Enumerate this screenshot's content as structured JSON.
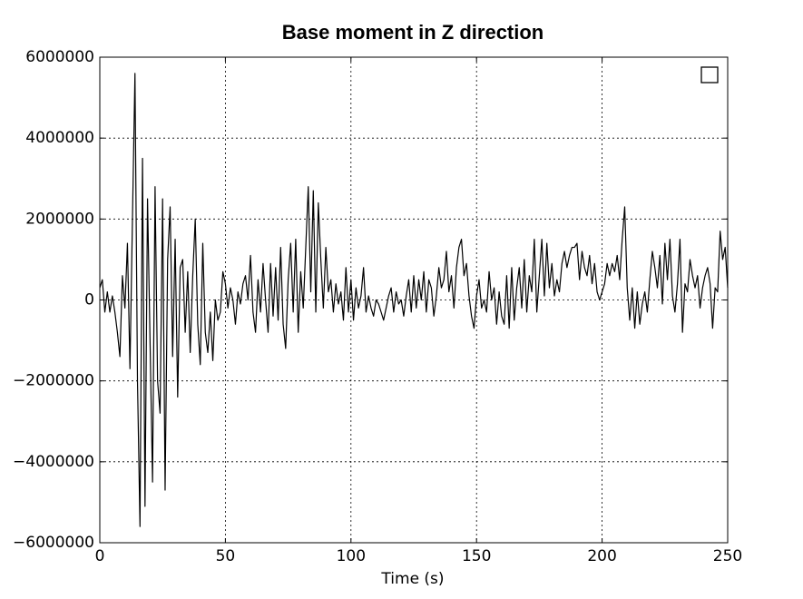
{
  "chart_data": {
    "type": "line",
    "title": "Base moment in Z direction",
    "x_label": "Time (s)",
    "x": [
      0,
      1,
      2,
      3,
      4,
      5,
      6,
      7,
      8,
      9,
      10,
      11,
      12,
      13,
      14,
      15,
      16,
      17,
      18,
      19,
      20,
      21,
      22,
      23,
      24,
      25,
      26,
      27,
      28,
      29,
      30,
      31,
      32,
      33,
      34,
      35,
      36,
      37,
      38,
      39,
      40,
      41,
      42,
      43,
      44,
      45,
      46,
      47,
      48,
      49,
      50,
      51,
      52,
      53,
      54,
      55,
      56,
      57,
      58,
      59,
      60,
      61,
      62,
      63,
      64,
      65,
      66,
      67,
      68,
      69,
      70,
      71,
      72,
      73,
      74,
      75,
      76,
      77,
      78,
      79,
      80,
      81,
      82,
      83,
      84,
      85,
      86,
      87,
      88,
      89,
      90,
      91,
      92,
      93,
      94,
      95,
      96,
      97,
      98,
      99,
      100,
      101,
      102,
      103,
      104,
      105,
      106,
      107,
      108,
      109,
      110,
      111,
      112,
      113,
      114,
      115,
      116,
      117,
      118,
      119,
      120,
      121,
      122,
      123,
      124,
      125,
      126,
      127,
      128,
      129,
      130,
      131,
      132,
      133,
      134,
      135,
      136,
      137,
      138,
      139,
      140,
      141,
      142,
      143,
      144,
      145,
      146,
      147,
      148,
      149,
      150,
      151,
      152,
      153,
      154,
      155,
      156,
      157,
      158,
      159,
      160,
      161,
      162,
      163,
      164,
      165,
      166,
      167,
      168,
      169,
      170,
      171,
      172,
      173,
      174,
      175,
      176,
      177,
      178,
      179,
      180,
      181,
      182,
      183,
      184,
      185,
      186,
      187,
      188,
      189,
      190,
      191,
      192,
      193,
      194,
      195,
      196,
      197,
      198,
      199,
      200,
      201,
      202,
      203,
      204,
      205,
      206,
      207,
      208,
      209,
      210,
      211,
      212,
      213,
      214,
      215,
      216,
      217,
      218,
      219,
      220,
      221,
      222,
      223,
      224,
      225,
      226,
      227,
      228,
      229,
      230,
      231,
      232,
      233,
      234,
      235,
      236,
      237,
      238,
      239,
      240,
      241,
      242,
      243,
      244,
      245,
      246,
      247,
      248,
      249,
      250
    ],
    "series": [
      {
        "color": "#000000",
        "values": [
          300000,
          500000,
          -300000,
          200000,
          -300000,
          100000,
          -300000,
          -800000,
          -1400000,
          600000,
          -200000,
          1400000,
          -1700000,
          2000000,
          5600000,
          -2000000,
          -5600000,
          3500000,
          -5100000,
          2500000,
          -1000000,
          -4500000,
          2800000,
          -2000000,
          -2800000,
          2500000,
          -4700000,
          1000000,
          2300000,
          -1400000,
          1500000,
          -2400000,
          800000,
          1000000,
          -800000,
          700000,
          -1300000,
          600000,
          2000000,
          -600000,
          -1600000,
          1400000,
          -800000,
          -1300000,
          -300000,
          -1500000,
          0,
          -500000,
          -300000,
          700000,
          400000,
          -200000,
          300000,
          0,
          -600000,
          200000,
          -100000,
          400000,
          600000,
          0,
          1100000,
          -300000,
          -800000,
          500000,
          -300000,
          900000,
          0,
          -800000,
          900000,
          -400000,
          800000,
          -500000,
          1300000,
          -600000,
          -1200000,
          500000,
          1400000,
          -300000,
          1500000,
          -800000,
          700000,
          -200000,
          1300000,
          2800000,
          200000,
          2700000,
          -300000,
          2400000,
          1000000,
          -200000,
          1300000,
          200000,
          500000,
          -300000,
          400000,
          -100000,
          200000,
          -500000,
          800000,
          -300000,
          500000,
          -500000,
          300000,
          -200000,
          100000,
          800000,
          -300000,
          100000,
          -200000,
          -400000,
          0,
          -100000,
          -300000,
          -500000,
          -200000,
          100000,
          300000,
          -300000,
          200000,
          -100000,
          0,
          -400000,
          100000,
          500000,
          -300000,
          600000,
          -200000,
          500000,
          0,
          700000,
          -300000,
          500000,
          300000,
          -400000,
          100000,
          800000,
          300000,
          500000,
          1200000,
          200000,
          600000,
          -200000,
          800000,
          1300000,
          1500000,
          600000,
          900000,
          100000,
          -400000,
          -700000,
          100000,
          500000,
          -200000,
          0,
          -300000,
          700000,
          0,
          300000,
          -600000,
          200000,
          -400000,
          -600000,
          600000,
          -700000,
          800000,
          -500000,
          300000,
          800000,
          -200000,
          1000000,
          -300000,
          600000,
          200000,
          1500000,
          -300000,
          600000,
          1500000,
          100000,
          1400000,
          300000,
          900000,
          100000,
          500000,
          200000,
          900000,
          1200000,
          800000,
          1100000,
          1300000,
          1300000,
          1400000,
          500000,
          1200000,
          800000,
          600000,
          1100000,
          400000,
          900000,
          200000,
          0,
          200000,
          400000,
          900000,
          600000,
          900000,
          700000,
          1100000,
          500000,
          1500000,
          2300000,
          300000,
          -500000,
          300000,
          -700000,
          200000,
          -600000,
          -100000,
          200000,
          -300000,
          500000,
          1200000,
          800000,
          300000,
          1100000,
          -100000,
          1400000,
          500000,
          1500000,
          100000,
          -300000,
          400000,
          1500000,
          -800000,
          400000,
          200000,
          1000000,
          600000,
          300000,
          600000,
          -200000,
          300000,
          600000,
          800000,
          400000,
          -700000,
          300000,
          200000,
          1700000,
          1000000,
          1300000,
          300000
        ]
      }
    ],
    "xlim": [
      0,
      250
    ],
    "xticks": [
      0,
      50,
      100,
      150,
      200,
      250
    ],
    "ylim": [
      -6000000,
      6000000
    ],
    "yticks": [
      {
        "value": -6000000,
        "label": "−6000000"
      },
      {
        "value": -4000000,
        "label": "−4000000"
      },
      {
        "value": -2000000,
        "label": "−2000000"
      },
      0,
      2000000,
      4000000,
      6000000
    ],
    "grid": true
  }
}
